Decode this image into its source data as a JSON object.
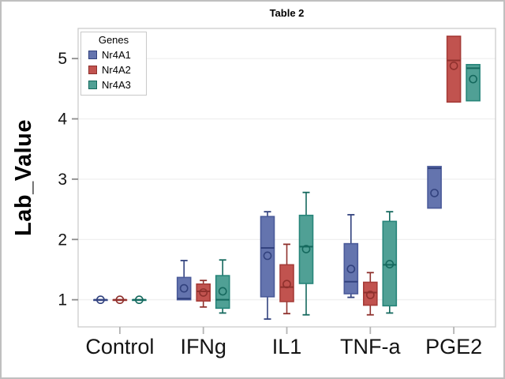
{
  "chart_data": {
    "type": "box",
    "title": "Table 2",
    "xlabel": "",
    "ylabel": "Lab_Value",
    "ylim": [
      0.55,
      5.5
    ],
    "yticks": [
      1,
      2,
      3,
      4,
      5
    ],
    "grid": true,
    "legend_title": "Genes",
    "legend_position": "top-left-inside",
    "categories": [
      "Control",
      "IFNg",
      "IL1",
      "TNF-a",
      "PGE2"
    ],
    "series": [
      {
        "name": "Nr4A1",
        "color": "#6474AE",
        "stroke": "#4A5A99",
        "dark": "#32427E",
        "boxes": [
          {
            "low": 1.0,
            "q1": 1.0,
            "median": 1.0,
            "q3": 1.0,
            "high": 1.0,
            "mean": 1.0
          },
          {
            "low": 0.98,
            "q1": 1.0,
            "median": 1.02,
            "q3": 1.37,
            "high": 1.65,
            "mean": 1.19
          },
          {
            "low": 0.68,
            "q1": 1.05,
            "median": 1.86,
            "q3": 2.38,
            "high": 2.46,
            "mean": 1.73
          },
          {
            "low": 1.04,
            "q1": 1.1,
            "median": 1.3,
            "q3": 1.93,
            "high": 2.41,
            "mean": 1.51
          },
          {
            "low": 2.52,
            "q1": 2.52,
            "median": 3.18,
            "q3": 3.21,
            "high": 3.21,
            "mean": 2.77
          }
        ]
      },
      {
        "name": "Nr4A2",
        "color": "#C1534F",
        "stroke": "#A63C38",
        "dark": "#8F312D",
        "boxes": [
          {
            "low": 1.0,
            "q1": 1.0,
            "median": 1.0,
            "q3": 1.0,
            "high": 1.0,
            "mean": 1.0
          },
          {
            "low": 0.88,
            "q1": 0.98,
            "median": 1.14,
            "q3": 1.26,
            "high": 1.32,
            "mean": 1.12
          },
          {
            "low": 0.77,
            "q1": 0.97,
            "median": 1.21,
            "q3": 1.58,
            "high": 1.92,
            "mean": 1.26
          },
          {
            "low": 0.75,
            "q1": 0.91,
            "median": 1.12,
            "q3": 1.29,
            "high": 1.45,
            "mean": 1.08
          },
          {
            "low": 4.28,
            "q1": 4.28,
            "median": 4.97,
            "q3": 5.37,
            "high": 5.37,
            "mean": 4.88
          }
        ]
      },
      {
        "name": "Nr4A3",
        "color": "#50A095",
        "stroke": "#27857A",
        "dark": "#15695E",
        "boxes": [
          {
            "low": 1.0,
            "q1": 1.0,
            "median": 1.0,
            "q3": 1.0,
            "high": 1.0,
            "mean": 1.0
          },
          {
            "low": 0.78,
            "q1": 0.86,
            "median": 1.0,
            "q3": 1.4,
            "high": 1.66,
            "mean": 1.14
          },
          {
            "low": 0.75,
            "q1": 1.27,
            "median": 1.88,
            "q3": 2.4,
            "high": 2.78,
            "mean": 1.84
          },
          {
            "low": 0.78,
            "q1": 0.9,
            "median": 1.58,
            "q3": 2.3,
            "high": 2.46,
            "mean": 1.59
          },
          {
            "low": 4.3,
            "q1": 4.3,
            "median": 4.84,
            "q3": 4.9,
            "high": 4.9,
            "mean": 4.66
          }
        ]
      }
    ],
    "colors": {
      "frame": "#C8C8C8",
      "gridline": "#F0F0F0",
      "y_tick": "#8C8C8C",
      "x_tick": "#B4B4B4",
      "text": "#141414"
    }
  }
}
